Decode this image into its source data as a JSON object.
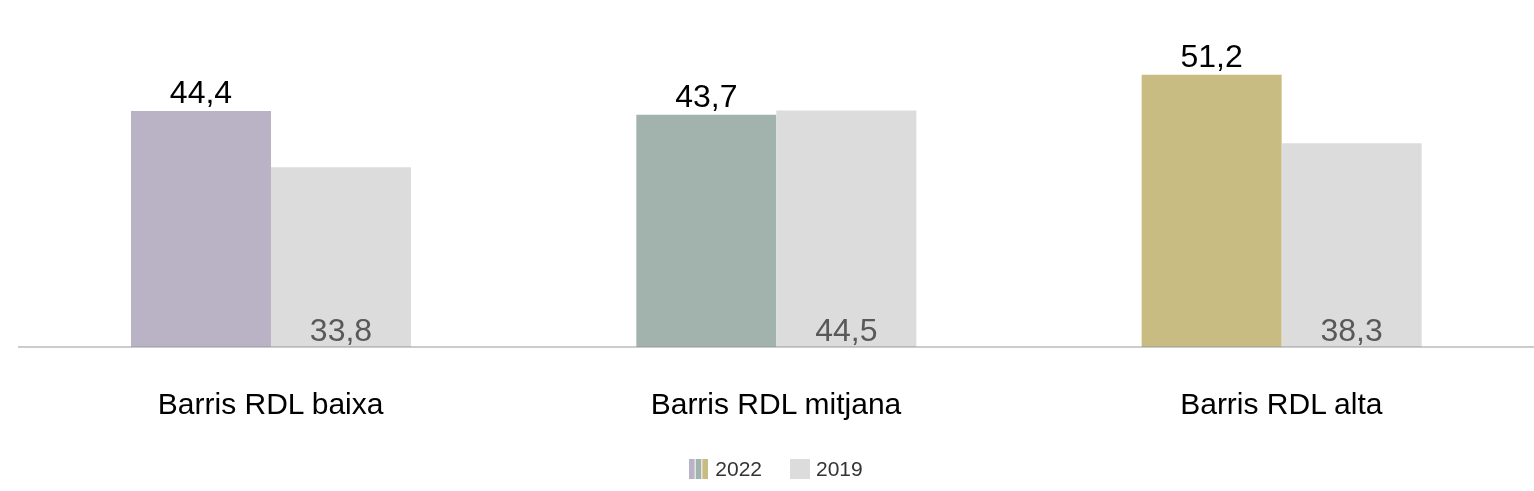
{
  "chart_data": {
    "type": "bar",
    "categories": [
      "Barris RDL baixa",
      "Barris RDL mitjana",
      "Barris RDL alta"
    ],
    "series": [
      {
        "name": "2022",
        "colors": [
          "#b9b3c5",
          "#a2b3ae",
          "#c9bc82"
        ],
        "values": [
          44.4,
          43.7,
          51.2
        ],
        "value_labels": [
          "44,4",
          "43,7",
          "51,2"
        ]
      },
      {
        "name": "2019",
        "color": "#dcdcdc",
        "values": [
          33.8,
          44.5,
          38.3
        ],
        "value_labels": [
          "33,8",
          "44,5",
          "38,3"
        ]
      }
    ],
    "legend": "bottom",
    "tick_labels": "x"
  }
}
